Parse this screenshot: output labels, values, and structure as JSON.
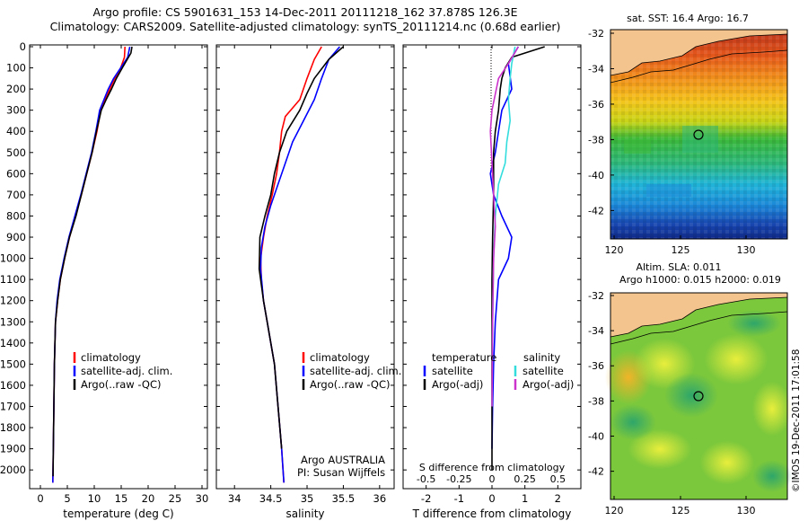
{
  "header": {
    "line1": "Argo profile: CS 5901631_153 14-Dec-2011 20111218_162 37.878S 126.3E",
    "line2": "Climatology: CARS2009. Satellite-adjusted climatology: synTS_20111214.nc (0.68d earlier)"
  },
  "colors": {
    "climatology": "#ff0000",
    "satellite": "#0000ff",
    "argo": "#000000",
    "argo_salinity_diff": "#cc33cc",
    "satellite_salinity_diff": "#33dddd",
    "land": "#f4c48e"
  },
  "chart_data": [
    {
      "type": "line",
      "xlabel": "temperature (deg C)",
      "ylabel": "",
      "xlim": [
        -2,
        31
      ],
      "ylim": [
        2080,
        0
      ],
      "xticks": [
        "0",
        "5",
        "10",
        "15",
        "20",
        "25",
        "30"
      ],
      "yticks": [
        "0",
        "100",
        "200",
        "300",
        "400",
        "500",
        "600",
        "700",
        "800",
        "900",
        "1000",
        "1100",
        "1200",
        "1300",
        "1400",
        "1500",
        "1600",
        "1700",
        "1800",
        "1900",
        "2000"
      ],
      "legend": [
        "climatology",
        "satellite-adj. clim.",
        "Argo(..raw -QC)"
      ],
      "legend_position": "lower-center",
      "series": [
        {
          "name": "climatology",
          "x": [
            15.7,
            15.6,
            14.9,
            13.8,
            12.9,
            12.0,
            11.2,
            10.5,
            9.6,
            8.6,
            7.6,
            6.5,
            5.4,
            4.5,
            3.7,
            3.2,
            2.8,
            2.6,
            2.5,
            2.4,
            2.3
          ],
          "y": [
            0,
            50,
            100,
            150,
            200,
            250,
            300,
            400,
            500,
            600,
            700,
            800,
            900,
            1000,
            1100,
            1200,
            1300,
            1500,
            1700,
            1900,
            2060
          ]
        },
        {
          "name": "satellite-adj. clim.",
          "x": [
            16.6,
            16.2,
            14.9,
            13.6,
            12.6,
            11.8,
            11.0,
            10.3,
            9.5,
            8.5,
            7.5,
            6.4,
            5.3,
            4.4,
            3.6,
            3.1,
            2.8,
            2.6,
            2.5,
            2.4,
            2.3
          ],
          "y": [
            0,
            50,
            100,
            150,
            200,
            250,
            300,
            400,
            500,
            600,
            700,
            800,
            900,
            1000,
            1100,
            1200,
            1300,
            1500,
            1700,
            1900,
            2060
          ]
        },
        {
          "name": "Argo(..raw -QC)",
          "x": [
            17.0,
            16.8,
            15.2,
            14.1,
            13.2,
            12.2,
            11.3,
            10.4,
            9.6,
            8.6,
            7.6,
            6.6,
            5.4,
            4.5,
            3.7,
            3.2,
            2.8,
            2.6,
            2.5,
            2.4,
            2.35
          ],
          "y": [
            0,
            30,
            100,
            150,
            200,
            250,
            300,
            400,
            500,
            600,
            700,
            800,
            900,
            1000,
            1100,
            1200,
            1300,
            1500,
            1700,
            1900,
            2030
          ]
        }
      ]
    },
    {
      "type": "line",
      "xlabel": "salinity",
      "ylabel": "",
      "xlim": [
        33.75,
        36.2
      ],
      "ylim": [
        2080,
        0
      ],
      "xticks": [
        "34",
        "34.5",
        "35",
        "35.5",
        "36"
      ],
      "legend": [
        "climatology",
        "satellite-adj. clim.",
        "Argo(..raw -QC)"
      ],
      "legend_position": "lower-right",
      "annotations": [
        "Argo AUSTRALIA",
        "PI: Susan Wijffels"
      ],
      "series": [
        {
          "name": "climatology",
          "x": [
            35.2,
            35.1,
            35.0,
            34.9,
            34.7,
            34.65,
            34.62,
            34.58,
            34.52,
            34.45,
            34.4,
            34.36,
            34.37,
            34.4,
            34.45,
            34.55,
            34.6,
            34.65,
            34.68
          ],
          "y": [
            0,
            60,
            150,
            250,
            330,
            400,
            500,
            600,
            700,
            800,
            900,
            1000,
            1100,
            1200,
            1300,
            1500,
            1700,
            1900,
            2060
          ]
        },
        {
          "name": "satellite-adj. clim.",
          "x": [
            35.45,
            35.3,
            35.2,
            35.1,
            34.95,
            34.8,
            34.7,
            34.6,
            34.5,
            34.42,
            34.37,
            34.36,
            34.4,
            34.45,
            34.55,
            34.6,
            34.65,
            34.68
          ],
          "y": [
            0,
            60,
            150,
            250,
            350,
            450,
            550,
            650,
            750,
            850,
            950,
            1050,
            1200,
            1300,
            1500,
            1700,
            1900,
            2060
          ]
        },
        {
          "name": "Argo(..raw -QC)",
          "x": [
            35.5,
            35.3,
            35.1,
            35.0,
            34.9,
            34.72,
            34.62,
            34.55,
            34.5,
            34.42,
            34.35,
            34.34,
            34.4,
            34.45,
            34.55,
            34.6,
            34.65
          ],
          "y": [
            0,
            60,
            150,
            220,
            300,
            400,
            500,
            600,
            700,
            800,
            900,
            1050,
            1200,
            1300,
            1500,
            1700,
            1900
          ]
        }
      ]
    },
    {
      "type": "line",
      "xlabel": "T difference from climatology",
      "xlabel_top": "S difference from climatology",
      "xlim": [
        -2.7,
        2.7
      ],
      "ylim": [
        2080,
        0
      ],
      "xticks": [
        "-2",
        "-1",
        "0",
        "1",
        "2"
      ],
      "xticks_top": [
        "-0.5",
        "-0.25",
        "0",
        "0.25",
        "0.5"
      ],
      "legend_left_title": "temperature",
      "legend_right_title": "salinity",
      "legend": [
        "satellite",
        "Argo(-adj)",
        "satellite",
        "Argo(-adj)"
      ],
      "legend_position": "lower-center",
      "series": [
        {
          "name": "satellite",
          "x": [
            0.8,
            0.5,
            0.6,
            0.3,
            0.2,
            0.1,
            -0.05,
            0.05,
            0.3,
            0.6,
            0.5,
            0.2,
            0.1,
            0.05,
            0.02,
            0.0
          ],
          "y": [
            0,
            80,
            200,
            300,
            400,
            500,
            600,
            700,
            800,
            900,
            1000,
            1100,
            1300,
            1500,
            1700,
            1900
          ]
        },
        {
          "name": "Argo(-adj)",
          "x": [
            1.6,
            0.6,
            0.4,
            0.3,
            0.25,
            0.2,
            0.1,
            0.05,
            0.05,
            0.02,
            0.0,
            0.0,
            0.0
          ],
          "y": [
            0,
            50,
            100,
            150,
            200,
            300,
            400,
            500,
            700,
            900,
            1100,
            1500,
            2000
          ]
        },
        {
          "name": "satellite",
          "x": [
            0.7,
            0.6,
            0.55,
            0.5,
            0.55,
            0.45,
            0.4,
            0.2,
            0.1,
            0.05,
            0.02,
            0.0
          ],
          "y": [
            0,
            80,
            150,
            250,
            350,
            450,
            550,
            650,
            800,
            1000,
            1300,
            1700
          ]
        },
        {
          "name": "Argo(-adj)",
          "x": [
            0.8,
            0.5,
            0.2,
            0.0,
            -0.05,
            0.0,
            0.05,
            0.1,
            0.05,
            0.02,
            0.0
          ],
          "y": [
            0,
            80,
            150,
            300,
            400,
            550,
            700,
            850,
            1000,
            1300,
            1700
          ]
        }
      ]
    }
  ],
  "maps": [
    {
      "title": "sat. SST: 16.4 Argo: 16.7",
      "yticks": [
        "-32",
        "-34",
        "-36",
        "-38",
        "-40",
        "-42"
      ],
      "xticks": [
        "120",
        "125",
        "130"
      ]
    },
    {
      "title_line1": "Altim. SLA: 0.011",
      "title_line2": "Argo h1000: 0.015 h2000: 0.019",
      "yticks": [
        "-32",
        "-34",
        "-36",
        "-38",
        "-40",
        "-42"
      ],
      "xticks": [
        "120",
        "125",
        "130"
      ]
    }
  ],
  "credit": "©IMOS 19-Dec-2011 17:01:58"
}
